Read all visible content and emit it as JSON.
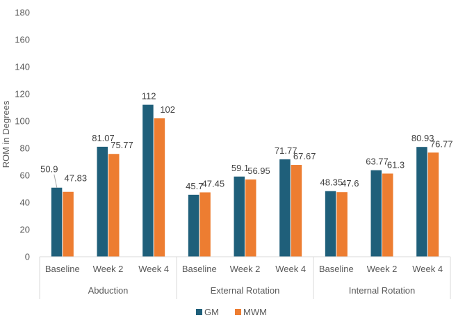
{
  "chart_data": {
    "type": "bar",
    "ylabel": "ROM in Degrees",
    "ylim": [
      0,
      180
    ],
    "yticks": [
      0,
      20,
      40,
      60,
      80,
      100,
      120,
      140,
      160,
      180
    ],
    "grid": false,
    "legend_position": "bottom",
    "groups": [
      {
        "label": "Abduction",
        "categories": [
          "Baseline",
          "Week 2",
          "Week 4"
        ]
      },
      {
        "label": "External Rotation",
        "categories": [
          "Baseline",
          "Week 2",
          "Week 4"
        ]
      },
      {
        "label": "Internal Rotation",
        "categories": [
          "Baseline",
          "Week 2",
          "Week 4"
        ]
      }
    ],
    "series": [
      {
        "name": "GM",
        "color": "#1f5f7a",
        "values": [
          50.9,
          81.07,
          112,
          45.7,
          59.1,
          71.77,
          48.35,
          63.77,
          80.93
        ]
      },
      {
        "name": "MWM",
        "color": "#ed7d31",
        "values": [
          47.83,
          75.77,
          102,
          47.45,
          56.95,
          67.67,
          47.6,
          61.3,
          76.77
        ]
      }
    ],
    "data_labels": [
      [
        "50.9",
        "81.07",
        "112",
        "45.7",
        "59.1",
        "71.77",
        "48.35",
        "63.77",
        "80.93"
      ],
      [
        "47.83",
        "75.77",
        "102",
        "47.45",
        "56.95",
        "67.67",
        "47.6",
        "61.3",
        "76.77"
      ]
    ]
  }
}
